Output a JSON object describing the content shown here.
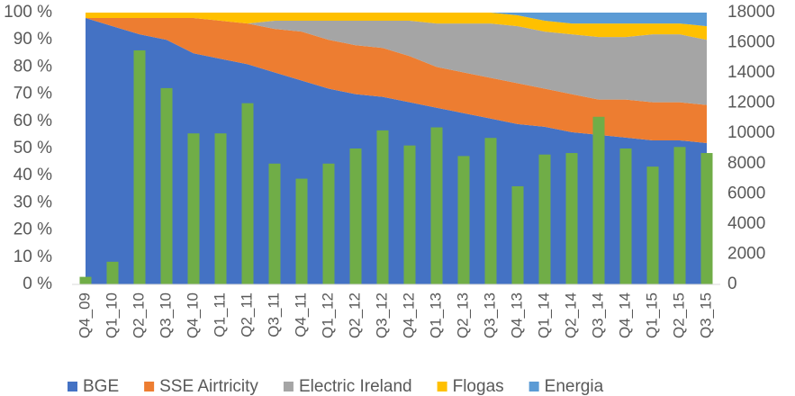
{
  "chart_data": {
    "type": "area",
    "categories": [
      "Q4_09",
      "Q1_10",
      "Q2_10",
      "Q3_10",
      "Q4_10",
      "Q1_11",
      "Q2_11",
      "Q3_11",
      "Q4_11",
      "Q1_12",
      "Q2_12",
      "Q3_12",
      "Q4_12",
      "Q1_13",
      "Q2_13",
      "Q3_13",
      "Q4_13",
      "Q1_14",
      "Q2_14",
      "Q3_14",
      "Q4_14",
      "Q1_15",
      "Q2_15",
      "Q3_15"
    ],
    "series": [
      {
        "name": "BGE",
        "color": "#4472c4",
        "type": "area",
        "values": [
          98,
          95,
          92,
          90,
          85,
          83,
          81,
          78,
          75,
          72,
          70,
          69,
          67,
          65,
          63,
          61,
          59,
          58,
          56,
          55,
          54,
          53,
          53,
          52
        ]
      },
      {
        "name": "SSE Airtricity",
        "color": "#ed7d31",
        "type": "area",
        "values": [
          0,
          3,
          6,
          8,
          13,
          14,
          15,
          16,
          18,
          18,
          18,
          18,
          17,
          15,
          15,
          15,
          15,
          14,
          14,
          13,
          14,
          14,
          14,
          14
        ]
      },
      {
        "name": "Electric Ireland",
        "color": "#a5a5a5",
        "type": "area",
        "values": [
          0,
          0,
          0,
          0,
          0,
          0,
          0,
          3,
          4,
          7,
          9,
          10,
          13,
          16,
          18,
          20,
          21,
          21,
          22,
          23,
          23,
          25,
          25,
          24
        ]
      },
      {
        "name": "Flogas",
        "color": "#ffc000",
        "type": "area",
        "values": [
          2,
          2,
          2,
          2,
          2,
          3,
          4,
          3,
          3,
          3,
          3,
          3,
          3,
          4,
          4,
          4,
          4,
          4,
          4,
          5,
          5,
          4,
          4,
          5
        ]
      },
      {
        "name": "Energia",
        "color": "#5b9bd5",
        "type": "area",
        "values": [
          0,
          0,
          0,
          0,
          0,
          0,
          0,
          0,
          0,
          0,
          0,
          0,
          0,
          0,
          0,
          0,
          1,
          3,
          4,
          4,
          4,
          4,
          4,
          5
        ]
      },
      {
        "color": "#70ad47",
        "type": "bar",
        "axis": "y2",
        "values": [
          500,
          1500,
          15500,
          13000,
          10000,
          10000,
          12000,
          8000,
          7000,
          8000,
          9000,
          10200,
          9200,
          10400,
          8500,
          9700,
          6500,
          8600,
          8700,
          11100,
          9000,
          7800,
          9100,
          8700
        ]
      }
    ],
    "ylim": [
      0,
      100
    ],
    "yticks": [
      {
        "value": 0,
        "label": "0 %"
      },
      {
        "value": 10,
        "label": "10 %"
      },
      {
        "value": 20,
        "label": "20 %"
      },
      {
        "value": 30,
        "label": "30 %"
      },
      {
        "value": 40,
        "label": "40 %"
      },
      {
        "value": 50,
        "label": "50 %"
      },
      {
        "value": 60,
        "label": "60 %"
      },
      {
        "value": 70,
        "label": "70 %"
      },
      {
        "value": 80,
        "label": "80 %"
      },
      {
        "value": 90,
        "label": "90 %"
      },
      {
        "value": 100,
        "label": "100 %"
      }
    ],
    "y2lim": [
      0,
      18000
    ],
    "y2ticks": [
      0,
      2000,
      4000,
      6000,
      8000,
      10000,
      12000,
      14000,
      16000,
      18000
    ],
    "grid": false,
    "legend": "bottom"
  }
}
